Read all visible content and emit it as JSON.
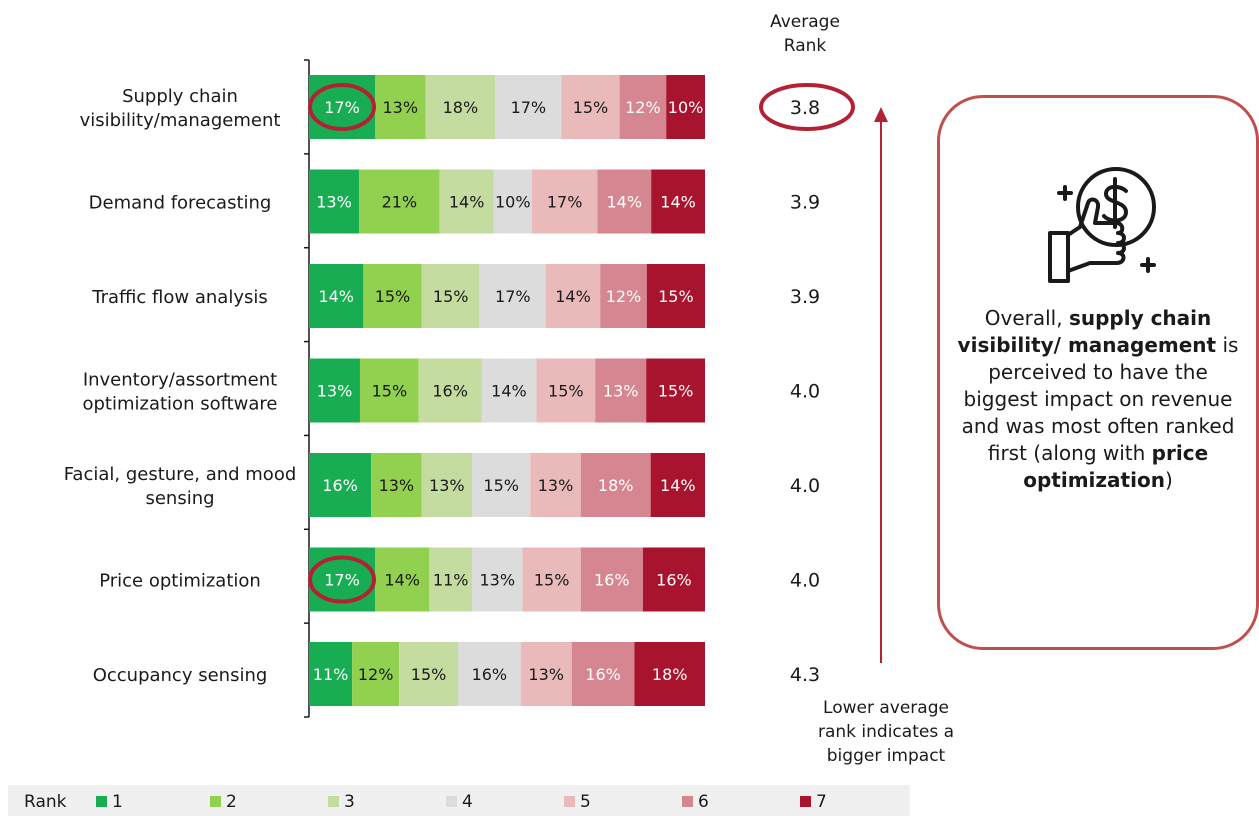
{
  "chart_data": {
    "type": "bar",
    "orientation": "horizontal",
    "stacked": true,
    "categories": [
      [
        "Supply chain",
        "visibility/management"
      ],
      [
        "Demand forecasting"
      ],
      [
        "Traffic flow analysis"
      ],
      [
        "Inventory/assortment",
        "optimization software"
      ],
      [
        "Facial, gesture, and mood",
        "sensing"
      ],
      [
        "Price optimization"
      ],
      [
        "Occupancy sensing"
      ]
    ],
    "series": [
      {
        "name": "1",
        "color": "#18ad52",
        "label_color": "#ffffff",
        "values": [
          17,
          13,
          14,
          13,
          16,
          17,
          11
        ]
      },
      {
        "name": "2",
        "color": "#92d050",
        "label_color": "#1a1a1a",
        "values": [
          13,
          21,
          15,
          15,
          13,
          14,
          12
        ]
      },
      {
        "name": "3",
        "color": "#c5dca1",
        "label_color": "#1a1a1a",
        "values": [
          18,
          14,
          15,
          16,
          13,
          11,
          15
        ]
      },
      {
        "name": "4",
        "color": "#dcdcdc",
        "label_color": "#1a1a1a",
        "values": [
          17,
          10,
          17,
          14,
          15,
          13,
          16
        ]
      },
      {
        "name": "5",
        "color": "#eababa",
        "label_color": "#1a1a1a",
        "values": [
          15,
          17,
          14,
          15,
          13,
          15,
          13
        ]
      },
      {
        "name": "6",
        "color": "#d58690",
        "label_color": "#ffffff",
        "values": [
          12,
          14,
          12,
          13,
          18,
          16,
          16
        ]
      },
      {
        "name": "7",
        "color": "#a8142e",
        "label_color": "#ffffff",
        "values": [
          10,
          14,
          15,
          15,
          14,
          16,
          18
        ]
      }
    ],
    "value_suffix": "%",
    "average_rank_header": [
      "Average",
      "Rank"
    ],
    "average_rank": [
      "3.8",
      "3.9",
      "3.9",
      "4.0",
      "4.0",
      "4.0",
      "4.3"
    ],
    "highlighted_cells": [
      {
        "row": 0,
        "series": 0
      },
      {
        "row": 5,
        "series": 0
      }
    ],
    "highlighted_average_row": 0,
    "arrow_note": [
      "Lower average",
      "rank indicates a",
      "bigger impact"
    ],
    "legend_title": "Rank",
    "legend_position": "bottom",
    "highlight_color": "#b22234"
  },
  "callout": {
    "icon": "thumbs-up-dollar-icon",
    "parts": [
      {
        "text": "Overall, ",
        "bold": false
      },
      {
        "text": "supply chain visibility/ management",
        "bold": true
      },
      {
        "text": " is perceived to have the biggest impact on revenue and was most often ranked first (along with ",
        "bold": false
      },
      {
        "text": "price optimization",
        "bold": true
      },
      {
        "text": ")",
        "bold": false
      }
    ],
    "border_color": "#c0504d"
  }
}
